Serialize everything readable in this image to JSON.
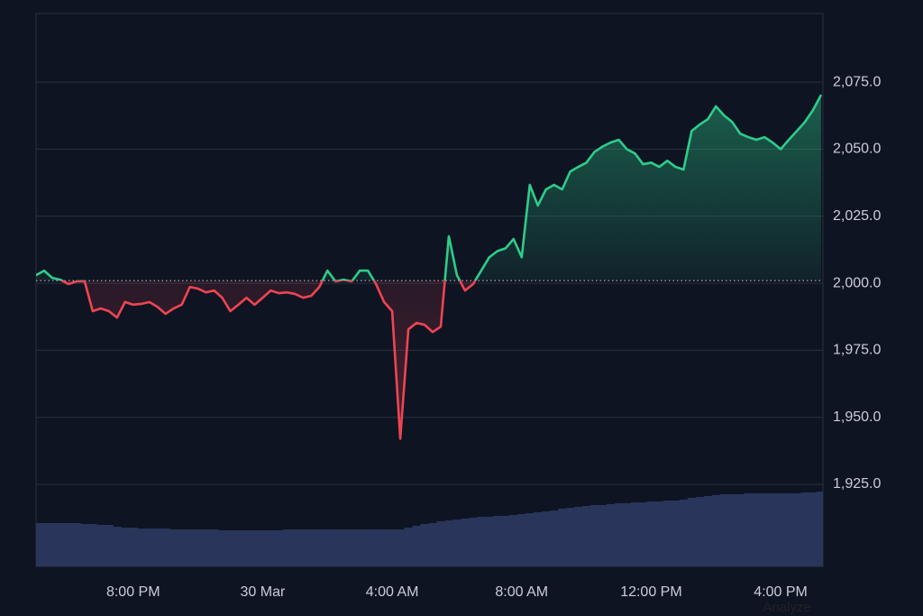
{
  "chart_data": {
    "type": "baseline",
    "categories": [
      null,
      null,
      null,
      null,
      null,
      null,
      null,
      null,
      null,
      null,
      null,
      null,
      "8:00 PM",
      null,
      null,
      null,
      null,
      null,
      null,
      null,
      null,
      null,
      null,
      null,
      null,
      null,
      null,
      null,
      "30 Mar",
      null,
      null,
      null,
      null,
      null,
      null,
      null,
      null,
      null,
      null,
      null,
      null,
      null,
      null,
      null,
      "4:00 AM",
      null,
      null,
      null,
      null,
      null,
      null,
      null,
      null,
      null,
      null,
      null,
      null,
      null,
      null,
      null,
      "8:00 AM",
      null,
      null,
      null,
      null,
      null,
      null,
      null,
      null,
      null,
      null,
      null,
      null,
      null,
      null,
      null,
      "12:00 PM",
      null,
      null,
      null,
      null,
      null,
      null,
      null,
      null,
      null,
      null,
      null,
      null,
      null,
      null,
      null,
      "4:00 PM",
      null,
      null,
      null,
      null,
      null
    ],
    "values": [
      2003,
      2004.7,
      2002,
      2001.3,
      1999.7,
      2000.7,
      2000.7,
      1989.6,
      1990.6,
      1989.6,
      1987.2,
      1993,
      1992,
      1992.3,
      1993,
      1991.2,
      1988.6,
      1990.6,
      1992,
      1998.6,
      1998,
      1996.6,
      1997.3,
      1994.6,
      1989.6,
      1992,
      1994.6,
      1992,
      1994.6,
      1997.3,
      1996.3,
      1996.6,
      1996,
      1994.6,
      1995.3,
      1998.6,
      2004.7,
      2000.7,
      2001.3,
      2000.7,
      2004.7,
      2004.7,
      1999.7,
      1993,
      1989.6,
      1942,
      1982.8,
      1985.2,
      1984.5,
      1981.8,
      1983.8,
      2017.5,
      2003,
      1997.3,
      1999.7,
      2004.7,
      2009.7,
      2012,
      2013,
      2016.5,
      2009.7,
      2036.7,
      2029,
      2035,
      2036.7,
      2035,
      2041.7,
      2043.4,
      2045,
      2049,
      2051,
      2052.5,
      2053.5,
      2050,
      2048.4,
      2044.4,
      2045,
      2043.4,
      2045.7,
      2043.4,
      2042.4,
      2056.8,
      2059.2,
      2061.2,
      2066,
      2062.6,
      2060.2,
      2055.8,
      2054.5,
      2053.5,
      2054.5,
      2052.5,
      2050,
      2053.5,
      2056.8,
      2060.2,
      2064.6,
      2070.3
    ],
    "baseline": 2001,
    "color_up": "#2ecc8a",
    "color_down": "#ef4452",
    "volume": {
      "axis": "y2",
      "color": "#29355a",
      "values": [
        48,
        48,
        48,
        48,
        48,
        48,
        47,
        47,
        46,
        46,
        44,
        43,
        43,
        42,
        42,
        42,
        42,
        41,
        41,
        41,
        41,
        41,
        41,
        40,
        40,
        40,
        40,
        40,
        40,
        40,
        40,
        41,
        41,
        41,
        41,
        41,
        41,
        41,
        41,
        41,
        41,
        41,
        41,
        41,
        41,
        41,
        43,
        45,
        47,
        48,
        50,
        51,
        52,
        53,
        54,
        55,
        55,
        56,
        56,
        57,
        58,
        59,
        60,
        61,
        62,
        64,
        65,
        66,
        67,
        68,
        68,
        69,
        70,
        70,
        71,
        71,
        72,
        72,
        73,
        73,
        74,
        76,
        77,
        78,
        79,
        80,
        80,
        80,
        81,
        81,
        81,
        81,
        81,
        81,
        81,
        82,
        82,
        83
      ]
    },
    "ylim": [
      1894.4,
      2100.6
    ],
    "yticks": [
      {
        "value": 1925,
        "label": "1,925.0"
      },
      {
        "value": 1950,
        "label": "1,950.0"
      },
      {
        "value": 1975,
        "label": "1,975.0"
      },
      {
        "value": 2000,
        "label": "2,000.0"
      },
      {
        "value": 2025,
        "label": "2,025.0"
      },
      {
        "value": 2050,
        "label": "2,050.0"
      },
      {
        "value": 2075,
        "label": "2,075.0"
      }
    ],
    "y2lim": [
      0,
      100
    ],
    "grid": true,
    "watermark": "Analyze"
  }
}
